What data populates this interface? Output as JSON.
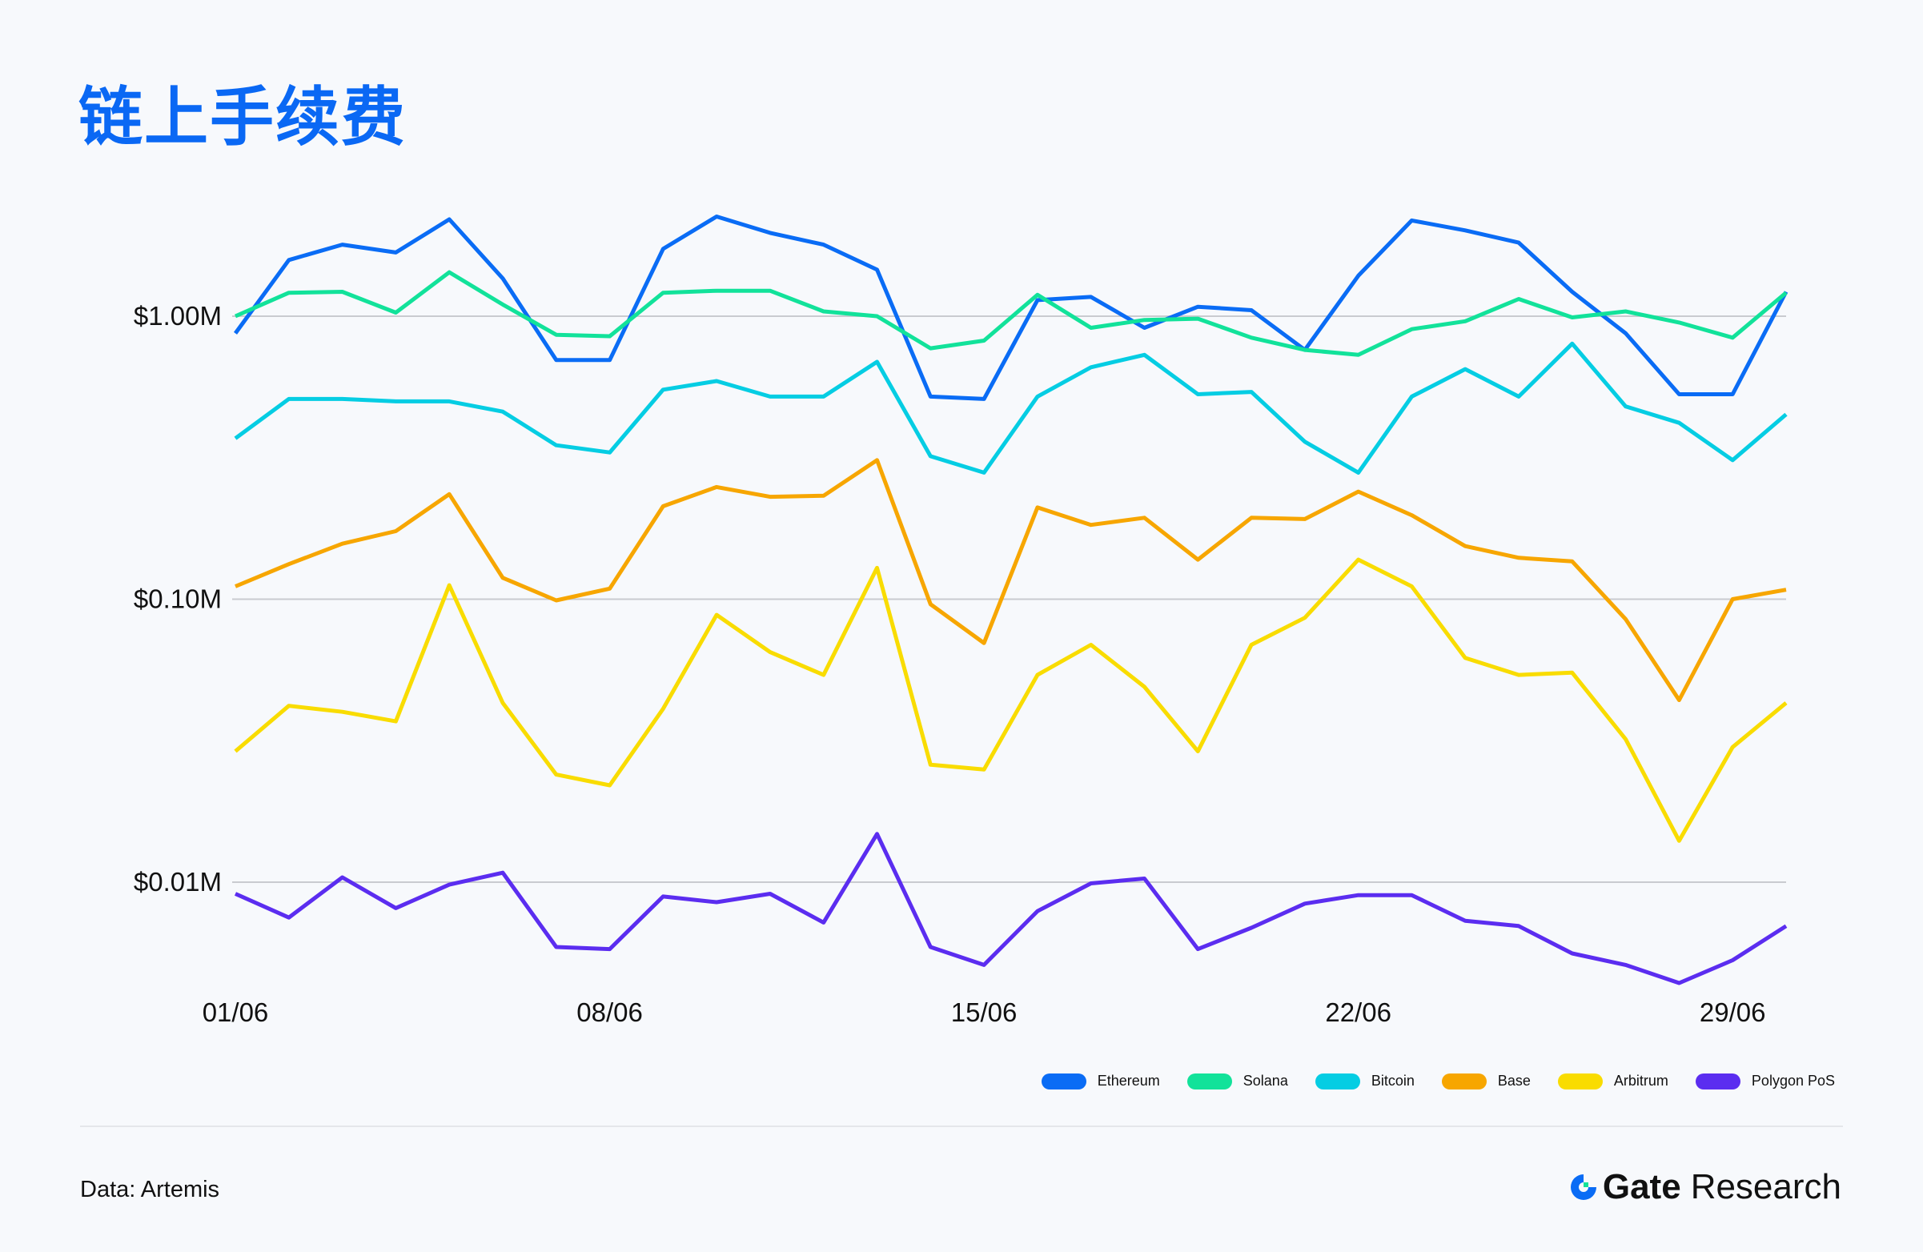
{
  "title": "链上手续费",
  "source": "Data: Artemis",
  "brand": {
    "name": "Gate",
    "suffix": "Research"
  },
  "chart_data": {
    "type": "line",
    "title": "链上手续费",
    "y_scale": "log",
    "ylim": [
      0.004,
      2.6
    ],
    "y_ticks": [
      {
        "value": 1.0,
        "label": "$1.00M"
      },
      {
        "value": 0.1,
        "label": "$0.10M"
      },
      {
        "value": 0.01,
        "label": "$0.01M"
      }
    ],
    "grid": true,
    "legend_position": "bottom-right",
    "x": [
      "01/06",
      "02/06",
      "03/06",
      "04/06",
      "05/06",
      "06/06",
      "07/06",
      "08/06",
      "09/06",
      "10/06",
      "11/06",
      "12/06",
      "13/06",
      "14/06",
      "15/06",
      "16/06",
      "17/06",
      "18/06",
      "19/06",
      "20/06",
      "21/06",
      "22/06",
      "23/06",
      "24/06",
      "25/06",
      "26/06",
      "27/06",
      "28/06",
      "29/06",
      "30/06"
    ],
    "x_tick_labels": [
      "01/06",
      "08/06",
      "15/06",
      "22/06",
      "29/06"
    ],
    "series": [
      {
        "name": "Ethereum",
        "color": "#0a6cf5",
        "values": [
          0.87,
          1.58,
          1.79,
          1.68,
          2.2,
          1.36,
          0.7,
          0.7,
          1.73,
          2.25,
          1.97,
          1.79,
          1.46,
          0.52,
          0.51,
          1.14,
          1.17,
          0.91,
          1.08,
          1.05,
          0.76,
          1.39,
          2.18,
          2.01,
          1.82,
          1.22,
          0.87,
          0.53,
          0.53,
          1.22
        ]
      },
      {
        "name": "Solana",
        "color": "#12e29a",
        "values": [
          1.0,
          1.21,
          1.22,
          1.03,
          1.43,
          1.1,
          0.86,
          0.85,
          1.21,
          1.23,
          1.23,
          1.04,
          1.0,
          0.77,
          0.82,
          1.19,
          0.91,
          0.97,
          0.98,
          0.84,
          0.76,
          0.73,
          0.9,
          0.96,
          1.15,
          0.99,
          1.04,
          0.95,
          0.84,
          1.21
        ]
      },
      {
        "name": "Bitcoin",
        "color": "#05cde3",
        "values": [
          0.37,
          0.51,
          0.51,
          0.5,
          0.5,
          0.46,
          0.35,
          0.33,
          0.55,
          0.59,
          0.52,
          0.52,
          0.69,
          0.32,
          0.28,
          0.52,
          0.66,
          0.73,
          0.53,
          0.54,
          0.36,
          0.28,
          0.52,
          0.65,
          0.52,
          0.8,
          0.48,
          0.42,
          0.31,
          0.45
        ]
      },
      {
        "name": "Base",
        "color": "#f7a600",
        "values": [
          0.111,
          0.133,
          0.157,
          0.174,
          0.235,
          0.119,
          0.099,
          0.109,
          0.213,
          0.249,
          0.23,
          0.232,
          0.31,
          0.096,
          0.07,
          0.211,
          0.183,
          0.194,
          0.138,
          0.194,
          0.192,
          0.24,
          0.198,
          0.154,
          0.14,
          0.136,
          0.085,
          0.044,
          0.1,
          0.108
        ]
      },
      {
        "name": "Arbitrum",
        "color": "#f9dc00",
        "values": [
          0.029,
          0.042,
          0.04,
          0.037,
          0.112,
          0.043,
          0.024,
          0.022,
          0.041,
          0.088,
          0.065,
          0.054,
          0.129,
          0.026,
          0.025,
          0.054,
          0.069,
          0.049,
          0.029,
          0.069,
          0.086,
          0.138,
          0.111,
          0.062,
          0.054,
          0.055,
          0.032,
          0.014,
          0.03,
          0.043
        ]
      },
      {
        "name": "Polygon PoS",
        "color": "#5b2df0",
        "values": [
          0.0091,
          0.0075,
          0.0104,
          0.0081,
          0.0098,
          0.0108,
          0.0059,
          0.0058,
          0.0089,
          0.0085,
          0.0091,
          0.0072,
          0.0148,
          0.0059,
          0.0051,
          0.0079,
          0.0099,
          0.0103,
          0.0058,
          0.0069,
          0.0084,
          0.009,
          0.009,
          0.0073,
          0.007,
          0.0056,
          0.0051,
          0.0044,
          0.0053,
          0.007
        ]
      }
    ]
  }
}
